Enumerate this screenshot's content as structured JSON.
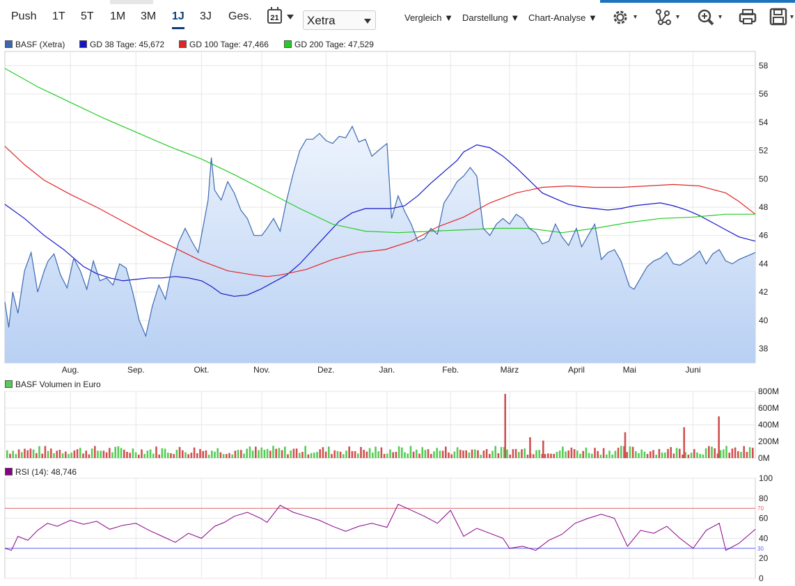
{
  "toolbar": {
    "periods": [
      "Push",
      "1T",
      "5T",
      "1M",
      "3M",
      "1J",
      "3J",
      "Ges."
    ],
    "active_period": "1J",
    "calendar_icon": "calendar-icon",
    "calendar_day": "21",
    "exchange_value": "Xetra",
    "menus": [
      "Vergleich",
      "Darstellung",
      "Chart-Analyse"
    ],
    "tools": [
      "gear-icon",
      "indicators-icon",
      "zoom-icon",
      "print-icon",
      "save-icon"
    ]
  },
  "colors": {
    "price": "#3a68b0",
    "gd38": "#1515c8",
    "gd100": "#e22424",
    "gd200": "#22cc22",
    "volume_up": "#55cc55",
    "volume_down": "#d05050",
    "rsi": "#880088",
    "rsi_upper": "#e06060",
    "rsi_lower": "#6060ee"
  },
  "chart_data": [
    {
      "type": "line",
      "legend": [
        {
          "label": "BASF (Xetra)",
          "color": "#3a68b0"
        },
        {
          "label": "GD 38 Tage: 45,672",
          "color": "#1515c8"
        },
        {
          "label": "GD 100 Tage: 47,466",
          "color": "#e22424"
        },
        {
          "label": "GD 200 Tage: 47,529",
          "color": "#22cc22"
        }
      ],
      "x_ticks": [
        "Aug.",
        "Sep.",
        "Okt.",
        "Nov.",
        "Dez.",
        "Jan.",
        "Feb.",
        "März",
        "April",
        "Mai",
        "Juni"
      ],
      "x_tick_pos": [
        2.0,
        3.0,
        4.0,
        4.92,
        5.9,
        6.83,
        7.8,
        8.7,
        9.72,
        10.53,
        11.5
      ],
      "y_ticks": [
        38,
        40,
        42,
        44,
        46,
        48,
        50,
        52,
        54,
        56,
        58
      ],
      "ylim": [
        37,
        59
      ],
      "xlim": [
        1.0,
        12.45
      ],
      "series": [
        {
          "name": "BASF (Xetra)",
          "x": [
            1.0,
            1.06,
            1.12,
            1.2,
            1.3,
            1.4,
            1.5,
            1.6,
            1.66,
            1.75,
            1.85,
            1.95,
            2.05,
            2.15,
            2.25,
            2.35,
            2.45,
            2.55,
            2.65,
            2.75,
            2.85,
            2.95,
            3.05,
            3.15,
            3.25,
            3.35,
            3.45,
            3.55,
            3.65,
            3.75,
            3.85,
            3.95,
            4.0,
            4.1,
            4.15,
            4.2,
            4.3,
            4.4,
            4.5,
            4.6,
            4.7,
            4.8,
            4.92,
            5.0,
            5.1,
            5.2,
            5.3,
            5.4,
            5.5,
            5.6,
            5.7,
            5.8,
            5.9,
            6.0,
            6.1,
            6.2,
            6.3,
            6.4,
            6.5,
            6.6,
            6.7,
            6.83,
            6.9,
            7.0,
            7.1,
            7.2,
            7.3,
            7.4,
            7.5,
            7.6,
            7.7,
            7.8,
            7.9,
            8.0,
            8.1,
            8.2,
            8.3,
            8.4,
            8.5,
            8.6,
            8.7,
            8.8,
            8.9,
            9.0,
            9.1,
            9.2,
            9.3,
            9.4,
            9.5,
            9.6,
            9.72,
            9.8,
            9.9,
            10.0,
            10.1,
            10.2,
            10.3,
            10.4,
            10.53,
            10.6,
            10.7,
            10.8,
            10.9,
            11.0,
            11.1,
            11.2,
            11.3,
            11.4,
            11.5,
            11.6,
            11.7,
            11.8,
            11.9,
            12.0,
            12.1,
            12.2,
            12.3,
            12.45
          ],
          "y": [
            41.3,
            39.5,
            42.0,
            40.5,
            43.5,
            44.8,
            42.0,
            43.5,
            44.2,
            44.7,
            43.2,
            42.3,
            44.4,
            43.5,
            42.2,
            44.2,
            42.8,
            43.0,
            42.5,
            44.0,
            43.7,
            42.0,
            40.0,
            38.9,
            41.0,
            42.5,
            41.5,
            43.8,
            45.5,
            46.5,
            45.6,
            44.8,
            46.0,
            48.5,
            51.5,
            49.2,
            48.5,
            49.8,
            49.0,
            47.8,
            47.2,
            46.0,
            46.0,
            46.5,
            47.2,
            46.3,
            48.5,
            50.4,
            52.0,
            52.8,
            52.8,
            53.2,
            52.7,
            52.5,
            53.0,
            52.9,
            53.7,
            52.6,
            52.8,
            51.6,
            52.0,
            52.5,
            47.2,
            48.8,
            47.7,
            46.8,
            45.6,
            45.8,
            46.5,
            46.1,
            48.3,
            49.0,
            49.8,
            50.2,
            50.8,
            50.2,
            46.5,
            46.0,
            46.8,
            47.2,
            46.8,
            47.5,
            47.2,
            46.5,
            46.2,
            45.4,
            45.6,
            46.8,
            45.9,
            45.3,
            46.5,
            45.2,
            46.0,
            46.8,
            44.3,
            44.8,
            45.0,
            44.2,
            42.4,
            42.2,
            43.0,
            43.8,
            44.2,
            44.4,
            44.8,
            44.0,
            43.9,
            44.2,
            44.5,
            44.9,
            44.0,
            44.7,
            45.0,
            44.2,
            44.0,
            44.3,
            44.5,
            44.8
          ]
        },
        {
          "name": "GD 38 Tage",
          "x": [
            1.0,
            1.3,
            1.6,
            1.9,
            2.0,
            2.2,
            2.4,
            2.6,
            2.8,
            3.0,
            3.2,
            3.4,
            3.6,
            3.8,
            4.0,
            4.15,
            4.3,
            4.5,
            4.7,
            4.9,
            5.1,
            5.3,
            5.5,
            5.7,
            5.9,
            6.1,
            6.3,
            6.5,
            6.7,
            6.9,
            7.1,
            7.3,
            7.5,
            7.7,
            7.9,
            8.0,
            8.2,
            8.4,
            8.6,
            8.8,
            9.0,
            9.2,
            9.4,
            9.6,
            9.8,
            10.0,
            10.2,
            10.4,
            10.6,
            10.8,
            11.0,
            11.2,
            11.4,
            11.6,
            11.8,
            12.0,
            12.2,
            12.45
          ],
          "y": [
            48.2,
            47.2,
            46.0,
            45.0,
            44.6,
            43.8,
            43.3,
            43.0,
            42.8,
            42.9,
            43.0,
            43.0,
            43.1,
            43.0,
            42.8,
            42.4,
            41.9,
            41.7,
            41.8,
            42.2,
            42.7,
            43.2,
            44.0,
            45.0,
            46.0,
            47.0,
            47.6,
            47.9,
            47.9,
            47.9,
            48.1,
            48.8,
            49.7,
            50.5,
            51.3,
            51.9,
            52.4,
            52.2,
            51.6,
            50.8,
            49.9,
            49.0,
            48.6,
            48.2,
            48.0,
            47.9,
            47.8,
            47.9,
            48.1,
            48.2,
            48.3,
            48.1,
            47.8,
            47.4,
            46.9,
            46.4,
            45.9,
            45.6
          ]
        },
        {
          "name": "GD 100 Tage",
          "x": [
            1.0,
            1.3,
            1.6,
            2.0,
            2.4,
            2.8,
            3.2,
            3.6,
            4.0,
            4.4,
            4.8,
            5.0,
            5.2,
            5.6,
            6.0,
            6.4,
            6.8,
            7.2,
            7.6,
            8.0,
            8.4,
            8.8,
            9.2,
            9.6,
            10.0,
            10.4,
            10.8,
            11.2,
            11.6,
            12.0,
            12.2,
            12.45
          ],
          "y": [
            52.3,
            51.0,
            49.9,
            48.9,
            48.0,
            47.0,
            46.0,
            45.1,
            44.2,
            43.5,
            43.2,
            43.1,
            43.2,
            43.6,
            44.3,
            44.8,
            45.0,
            45.6,
            46.6,
            47.3,
            48.3,
            49.0,
            49.4,
            49.5,
            49.4,
            49.4,
            49.5,
            49.6,
            49.5,
            49.0,
            48.4,
            47.5
          ]
        },
        {
          "name": "GD 200 Tage",
          "x": [
            1.0,
            1.5,
            2.0,
            2.5,
            3.0,
            3.5,
            4.0,
            4.5,
            5.0,
            5.5,
            6.0,
            6.5,
            7.0,
            7.5,
            8.0,
            8.5,
            9.0,
            9.5,
            10.0,
            10.5,
            11.0,
            11.5,
            12.0,
            12.45
          ],
          "y": [
            57.8,
            56.5,
            55.4,
            54.3,
            53.3,
            52.3,
            51.4,
            50.3,
            49.1,
            47.9,
            46.8,
            46.3,
            46.2,
            46.3,
            46.4,
            46.5,
            46.5,
            46.2,
            46.5,
            46.9,
            47.2,
            47.3,
            47.5,
            47.5
          ]
        }
      ]
    },
    {
      "type": "bar",
      "legend": [
        {
          "label": "BASF Volumen in Euro",
          "color": "#55cc55"
        }
      ],
      "y_ticks": [
        "0M",
        "200M",
        "400M",
        "600M",
        "800M"
      ],
      "ylim": [
        0,
        800
      ],
      "note_values": "values in M (millions of euro); highlighted spikes",
      "spikes": [
        {
          "x": 8.62,
          "value": 770
        },
        {
          "x": 9.0,
          "value": 250
        },
        {
          "x": 9.2,
          "value": 210
        },
        {
          "x": 10.45,
          "value": 310
        },
        {
          "x": 11.35,
          "value": 370
        },
        {
          "x": 11.88,
          "value": 500
        }
      ]
    },
    {
      "type": "line",
      "legend": [
        {
          "label": "RSI (14): 48,746",
          "color": "#880088"
        }
      ],
      "y_ticks": [
        0,
        20,
        40,
        60,
        80,
        100
      ],
      "ylim": [
        0,
        100
      ],
      "levels": [
        70,
        30
      ],
      "level_labels": [
        "70",
        "30"
      ],
      "series": [
        {
          "name": "RSI (14)",
          "x": [
            1.0,
            1.1,
            1.2,
            1.35,
            1.5,
            1.65,
            1.8,
            2.0,
            2.2,
            2.4,
            2.6,
            2.8,
            3.0,
            3.2,
            3.4,
            3.6,
            3.8,
            4.0,
            4.2,
            4.35,
            4.5,
            4.7,
            4.9,
            5.0,
            5.2,
            5.4,
            5.6,
            5.8,
            6.0,
            6.2,
            6.4,
            6.6,
            6.83,
            7.0,
            7.2,
            7.4,
            7.6,
            7.8,
            8.0,
            8.2,
            8.4,
            8.6,
            8.7,
            8.9,
            9.1,
            9.3,
            9.5,
            9.7,
            9.9,
            10.1,
            10.3,
            10.5,
            10.7,
            10.9,
            11.1,
            11.3,
            11.5,
            11.7,
            11.9,
            12.0,
            12.2,
            12.45
          ],
          "y": [
            30,
            28,
            42,
            38,
            48,
            55,
            52,
            58,
            54,
            57,
            49,
            53,
            55,
            48,
            42,
            36,
            45,
            40,
            52,
            56,
            62,
            66,
            60,
            56,
            73,
            66,
            62,
            58,
            52,
            47,
            52,
            55,
            51,
            74,
            68,
            62,
            55,
            68,
            42,
            50,
            45,
            40,
            30,
            32,
            28,
            38,
            44,
            55,
            60,
            64,
            60,
            32,
            48,
            45,
            52,
            40,
            30,
            48,
            55,
            28,
            35,
            49
          ]
        }
      ]
    }
  ]
}
